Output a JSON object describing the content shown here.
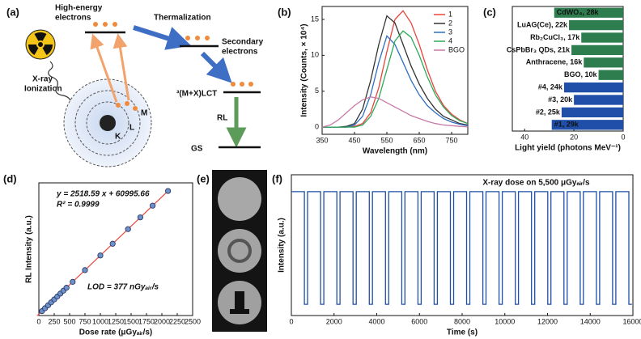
{
  "diagram": {
    "label": "(a)",
    "high_energy": [
      "High-energy",
      "electrons"
    ],
    "thermalization": "Thermalization",
    "secondary": [
      "Secondary",
      "electrons"
    ],
    "xray": [
      "X-ray",
      "Ionization"
    ],
    "shells": [
      "M",
      "L",
      "K"
    ],
    "lct": "³(M+X)LCT",
    "rl": "RL",
    "gs": "GS"
  },
  "chart_data": [
    {
      "type": "line",
      "label": "(b)",
      "x_label": "Wavelength (nm)",
      "y_label": "Intensity (Counts, × 10⁴)",
      "x": [
        350,
        375,
        400,
        425,
        450,
        475,
        500,
        525,
        550,
        575,
        600,
        625,
        650,
        675,
        700,
        725,
        750,
        775,
        800
      ],
      "xlim": [
        350,
        800
      ],
      "xticks": [
        350,
        450,
        550,
        650,
        750
      ],
      "ylim": [
        -1,
        16.8
      ],
      "yticks": [
        0,
        5,
        10,
        15
      ],
      "legend": "upper right",
      "series": [
        {
          "name": "1",
          "color": "#e8453c",
          "values": [
            0,
            0,
            0,
            0,
            0.1,
            0.5,
            2,
            5.5,
            10.5,
            15,
            16.2,
            14.5,
            11.5,
            8,
            5,
            3,
            1.8,
            1,
            0.5
          ]
        },
        {
          "name": "2",
          "color": "#333333",
          "values": [
            0,
            0,
            0,
            0.1,
            0.5,
            2.5,
            6.5,
            11.5,
            15.5,
            14.5,
            11.5,
            8.5,
            6,
            4,
            2.5,
            1.5,
            1,
            0.5,
            0.3
          ]
        },
        {
          "name": "3",
          "color": "#2f6fc0",
          "values": [
            0,
            0,
            0,
            0,
            0.3,
            1.5,
            4.5,
            9,
            12.7,
            11.5,
            9,
            6.5,
            4.5,
            3,
            2,
            1.2,
            0.7,
            0.4,
            0.2
          ]
        },
        {
          "name": "4",
          "color": "#2eaa5a",
          "values": [
            0,
            0,
            0,
            0,
            0,
            0.3,
            1.5,
            4,
            8,
            12,
            13.4,
            12.5,
            10,
            7,
            4.5,
            2.8,
            1.6,
            0.9,
            0.5
          ]
        },
        {
          "name": "BGO",
          "color": "#c77aa8",
          "values": [
            0,
            0.3,
            1,
            2,
            3,
            3.8,
            4.2,
            4,
            3.4,
            2.8,
            2.2,
            1.6,
            1.2,
            0.8,
            0.5,
            0.3,
            0.2,
            0.1,
            0.05
          ]
        }
      ]
    },
    {
      "type": "bar",
      "orientation": "horizontal",
      "label": "(c)",
      "x_label": "Light yield (photons MeV⁻¹)",
      "categories": [
        "CdWO₄, 28k",
        "LuAG(Ce), 22k",
        "Rb₂CuCl₃, 17k",
        "CsPbBr₃ QDs, 21k",
        "Anthracene, 16k",
        "BGO, 10k",
        "#4, 24k",
        "#3, 20k",
        "#2, 25k",
        "#1, 29k"
      ],
      "values": [
        28,
        22,
        17,
        21,
        16,
        10,
        24,
        20,
        25,
        29
      ],
      "colors": [
        "#2e7d4f",
        "#2e7d4f",
        "#2e7d4f",
        "#2e7d4f",
        "#2e7d4f",
        "#2e7d4f",
        "#1f4fa8",
        "#1f4fa8",
        "#1f4fa8",
        "#1f4fa8"
      ],
      "xlim": [
        45,
        0
      ],
      "xticks": [
        40,
        20,
        0
      ]
    },
    {
      "type": "scatter",
      "label": "(d)",
      "x_label": "Dose rate (μGyₐᵢᵣ/s)",
      "y_label": "RL Intensity (a.u.)",
      "equation": "y = 2518.59 x + 60995.66",
      "r2": "R² = 0.9999",
      "lod": "LOD = 377 nGyₐᵢᵣ/s",
      "x": [
        50,
        100,
        150,
        200,
        250,
        300,
        350,
        400,
        450,
        550,
        750,
        1000,
        1200,
        1450,
        1650,
        1850,
        2100
      ],
      "values": [
        186925,
        312855,
        438784,
        564714,
        690643,
        816573,
        942502,
        1068432,
        1194362,
        1446221,
        1949939,
        2579586,
        3083304,
        3712950,
        4216668,
        4720387,
        5350034
      ],
      "xlim": [
        0,
        2500
      ],
      "xticks": [
        0,
        250,
        500,
        750,
        1000,
        1250,
        1500,
        1750,
        2000,
        2250,
        2500
      ],
      "ylim": [
        0,
        5700000
      ],
      "color": "#6f8fc8",
      "fit_color": "#e8453c"
    },
    {
      "type": "line",
      "label": "(f)",
      "x_label": "Time (s)",
      "y_label": "Intensity (a.u.)",
      "annotation": "X-ray dose on  5,500 μGyₐᵢᵣ/s",
      "x": [
        0,
        610,
        610,
        760,
        760,
        1370,
        1370,
        1520,
        1520,
        2130,
        2130,
        2280,
        2280,
        2890,
        2890,
        3040,
        3040,
        3650,
        3650,
        3800,
        3800,
        4410,
        4410,
        4560,
        4560,
        5170,
        5170,
        5320,
        5320,
        5930,
        5930,
        6080,
        6080,
        6690,
        6690,
        6840,
        6840,
        7450,
        7450,
        7600,
        7600,
        8210,
        8210,
        8360,
        8360,
        8970,
        8970,
        9120,
        9120,
        9730,
        9730,
        9880,
        9880,
        10490,
        10490,
        10640,
        10640,
        11250,
        11250,
        11400,
        11400,
        12010,
        12010,
        12160,
        12160,
        12770,
        12770,
        12920,
        12920,
        13530,
        13530,
        13680,
        13680,
        14290,
        14290,
        14440,
        14440,
        15050,
        15050,
        15200,
        15200,
        15810,
        15810,
        15960
      ],
      "xlim": [
        0,
        16000
      ],
      "xticks": [
        0,
        2000,
        4000,
        6000,
        8000,
        10000,
        12000,
        14000,
        16000
      ],
      "ylim": [
        -0.1,
        1.15
      ],
      "series": [
        {
          "color": "#1f4fa8",
          "values": [
            1,
            1,
            0,
            0,
            1,
            1,
            0,
            0,
            1,
            1,
            0,
            0,
            1,
            1,
            0,
            0,
            1,
            1,
            0,
            0,
            1,
            1,
            0,
            0,
            1,
            1,
            0,
            0,
            1,
            1,
            0,
            0,
            1,
            1,
            0,
            0,
            1,
            1,
            0,
            0,
            1,
            1,
            0,
            0,
            1,
            1,
            0,
            0,
            1,
            1,
            0,
            0,
            1,
            1,
            0,
            0,
            1,
            1,
            0,
            0,
            1,
            1,
            0,
            0,
            1,
            1,
            0,
            0,
            1,
            1,
            0,
            0,
            1,
            1,
            0,
            0,
            1,
            1,
            0,
            0,
            1,
            1,
            0,
            0
          ]
        }
      ]
    }
  ],
  "images": {
    "label": "(e)"
  }
}
